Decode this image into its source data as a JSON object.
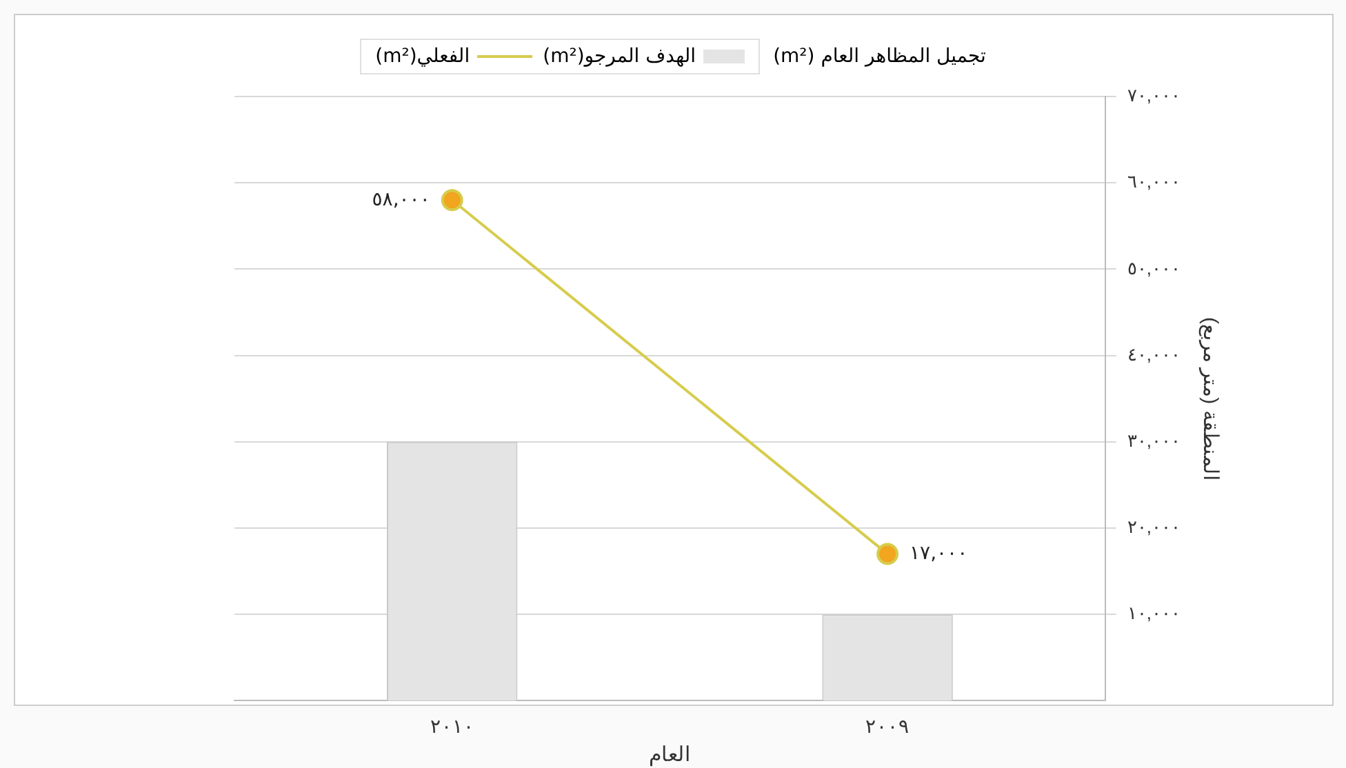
{
  "chart_data": {
    "type": "bar",
    "categories": [
      "٢٠١٠",
      "٢٠٠٩"
    ],
    "xlabel": "العام",
    "ylabel": "المنطقة (متر مربع)",
    "legend_title": "تجميل المظاهر العام (m²)",
    "legend": "top",
    "grid": "y",
    "marker": "circle",
    "ylim": [
      0,
      70000
    ],
    "yticks": [
      {
        "value": 10000,
        "label": "١٠,٠٠٠"
      },
      {
        "value": 20000,
        "label": "٢٠,٠٠٠"
      },
      {
        "value": 30000,
        "label": "٣٠,٠٠٠"
      },
      {
        "value": 40000,
        "label": "٤٠,٠٠٠"
      },
      {
        "value": 50000,
        "label": "٥٠,٠٠٠"
      },
      {
        "value": 60000,
        "label": "٦٠,٠٠٠"
      },
      {
        "value": 70000,
        "label": "٧٠,٠٠٠"
      }
    ],
    "series": [
      {
        "name": "الهدف المرجو(m²)",
        "color": "#e4e4e4",
        "values": [
          30000,
          10000
        ]
      },
      {
        "name": "الفعلي(m²)",
        "type": "line",
        "color": "#d6cc4c",
        "values": [
          58000,
          17000
        ],
        "value_labels": [
          "٥٨,٠٠٠",
          "١٧,٠٠٠"
        ]
      }
    ]
  }
}
